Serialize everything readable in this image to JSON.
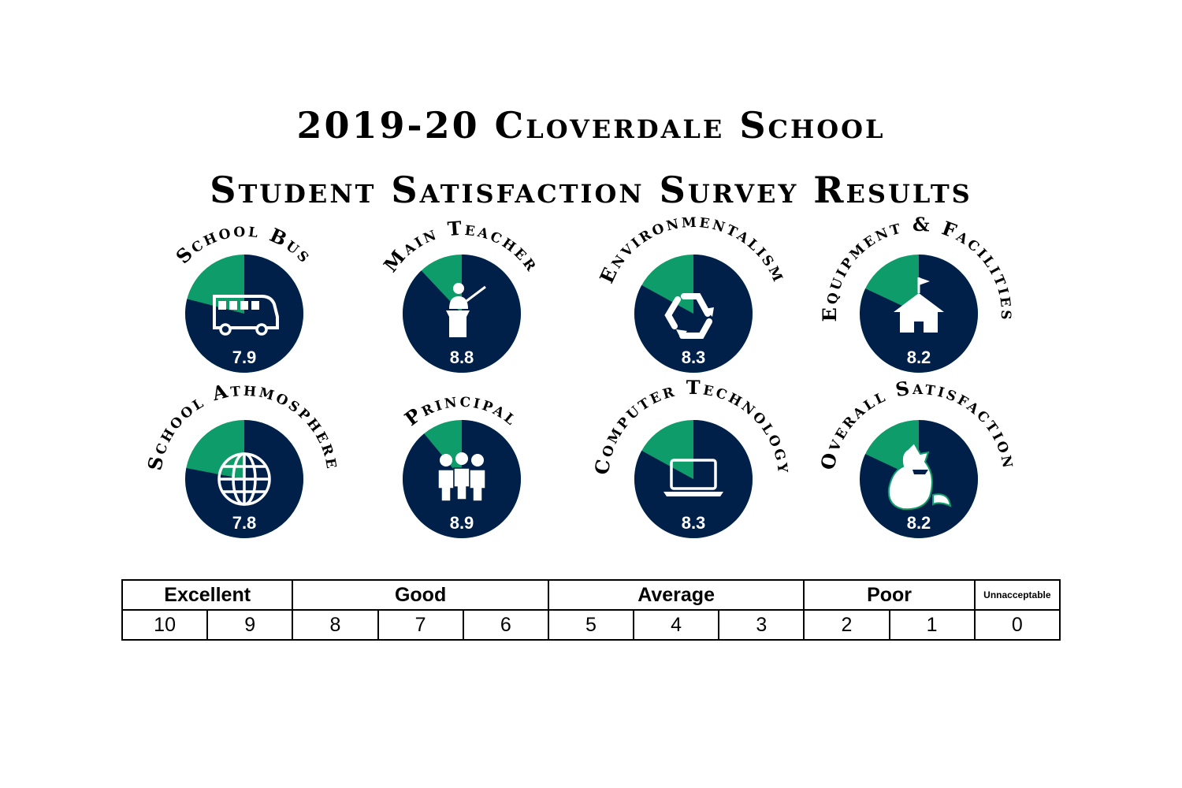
{
  "title": {
    "line1": "2019-20 Cloverdale School",
    "line2": "Student Satisfaction Survey Results"
  },
  "colors": {
    "score": "#00204a",
    "remainder": "#0e9c6b",
    "text": "#ffffff"
  },
  "chart_data": {
    "type": "pie",
    "scale_max": 10,
    "items": [
      {
        "label": "School Bus",
        "value": 7.9,
        "value_label": "7.9",
        "icon": "school-bus-icon"
      },
      {
        "label": "Main Teacher",
        "value": 8.8,
        "value_label": "8.8",
        "icon": "teacher-podium-icon"
      },
      {
        "label": "Environmentalism",
        "value": 8.3,
        "value_label": "8.3",
        "icon": "recycle-icon"
      },
      {
        "label": "Equipment & Facilities",
        "value": 8.2,
        "value_label": "8.2",
        "icon": "school-house-icon"
      },
      {
        "label": "School Athmosphere",
        "value": 7.8,
        "value_label": "7.8",
        "icon": "globe-icon"
      },
      {
        "label": "Principal",
        "value": 8.9,
        "value_label": "8.9",
        "icon": "people-group-icon"
      },
      {
        "label": "Computer Technology",
        "value": 8.3,
        "value_label": "8.3",
        "icon": "laptop-icon"
      },
      {
        "label": "Overall Satisfaction",
        "value": 8.2,
        "value_label": "8.2",
        "icon": "coyote-mascot-icon"
      }
    ]
  },
  "scale": {
    "categories": [
      {
        "label": "Excellent",
        "span": 2
      },
      {
        "label": "Good",
        "span": 3
      },
      {
        "label": "Average",
        "span": 3
      },
      {
        "label": "Poor",
        "span": 2
      },
      {
        "label": "Unnacceptable",
        "span": 1
      }
    ],
    "values": [
      "10",
      "9",
      "8",
      "7",
      "6",
      "5",
      "4",
      "3",
      "2",
      "1",
      "0"
    ]
  }
}
